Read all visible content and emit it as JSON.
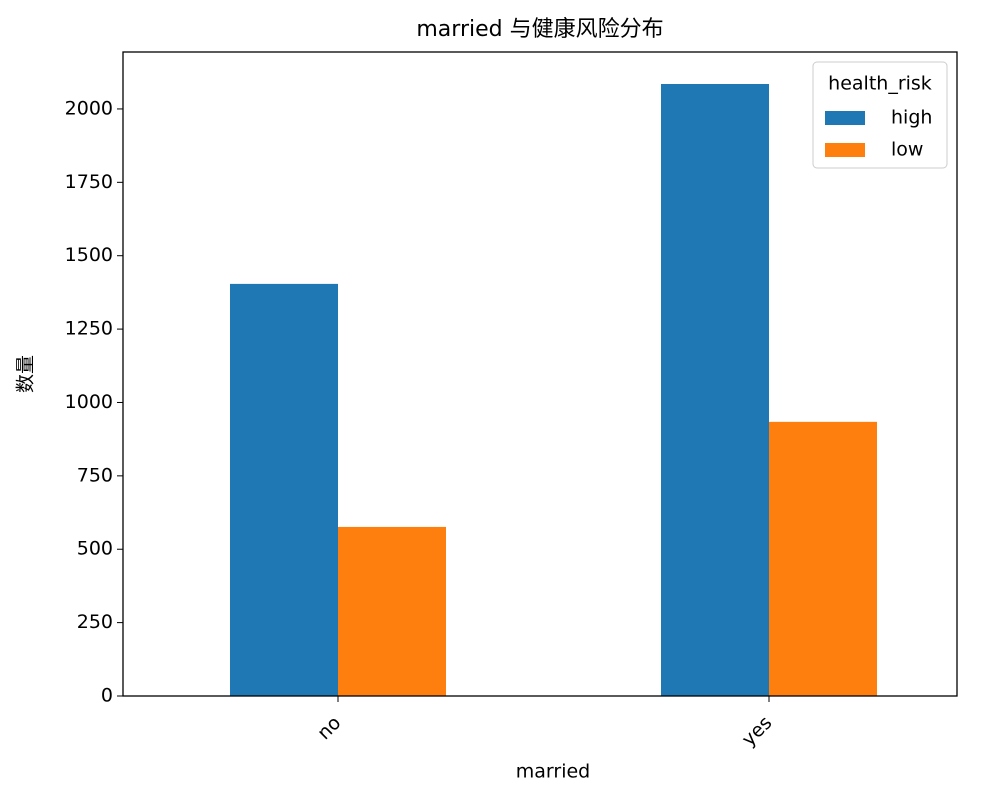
{
  "chart_data": {
    "type": "bar",
    "title": "married 与健康风险分布",
    "x_label": "married",
    "y_label": "数量",
    "categories": [
      "no",
      "yes"
    ],
    "series": [
      {
        "name": "high",
        "color": "#1f77b4",
        "values": [
          1404,
          2085
        ]
      },
      {
        "name": "low",
        "color": "#ff7f0e",
        "values": [
          576,
          934
        ]
      }
    ],
    "legend_title": "health_risk",
    "legend": "upper right",
    "ylim": [
      0,
      2194
    ],
    "yticks": [
      0,
      250,
      500,
      750,
      1000,
      1250,
      1500,
      1750,
      2000
    ],
    "grid": false
  }
}
